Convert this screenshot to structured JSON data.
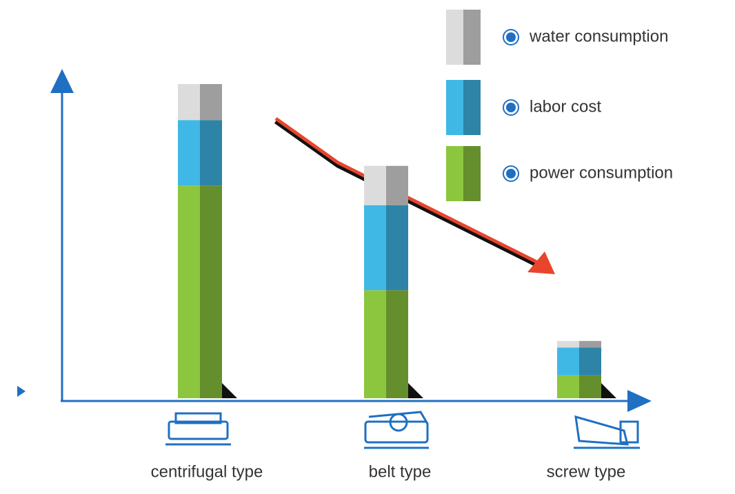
{
  "chart_data": {
    "type": "bar",
    "stacked": true,
    "categories": [
      "centrifugal type",
      "belt type",
      "screw type"
    ],
    "series": [
      {
        "name": "power consumption",
        "color": "#8cc63e",
        "values": [
          65,
          33,
          7
        ]
      },
      {
        "name": "labor cost",
        "color": "#3fb8e6",
        "values": [
          20,
          26,
          8.5
        ]
      },
      {
        "name": "water consumption",
        "color": "#dcdcdc",
        "values": [
          11,
          12,
          2
        ]
      }
    ],
    "ylim": [
      0,
      100
    ]
  }
}
